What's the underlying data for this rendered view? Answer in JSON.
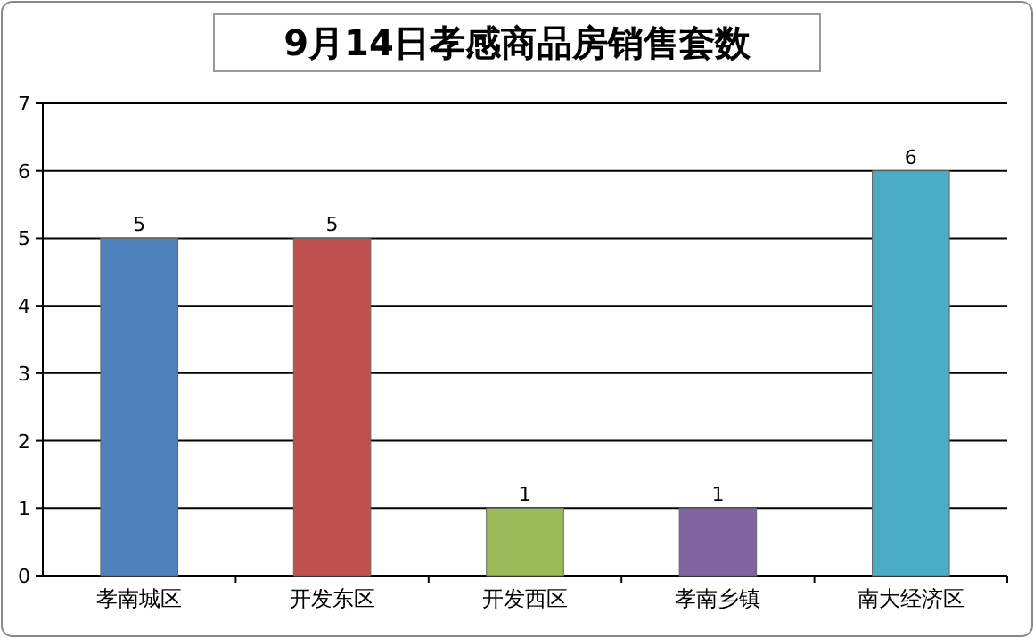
{
  "chart_data": {
    "type": "bar",
    "title": "9月14日孝感商品房销售套数",
    "categories": [
      "孝南城区",
      "开发东区",
      "开发西区",
      "孝南乡镇",
      "南大经济区"
    ],
    "values": [
      5,
      5,
      1,
      1,
      6
    ],
    "colors": [
      "#4f81bd",
      "#c0504d",
      "#9bbb59",
      "#8064a2",
      "#4bacc6"
    ],
    "ylim": [
      0,
      7
    ],
    "yticks": [
      0,
      1,
      2,
      3,
      4,
      5,
      6,
      7
    ],
    "grid": "y",
    "data_labels": true
  }
}
